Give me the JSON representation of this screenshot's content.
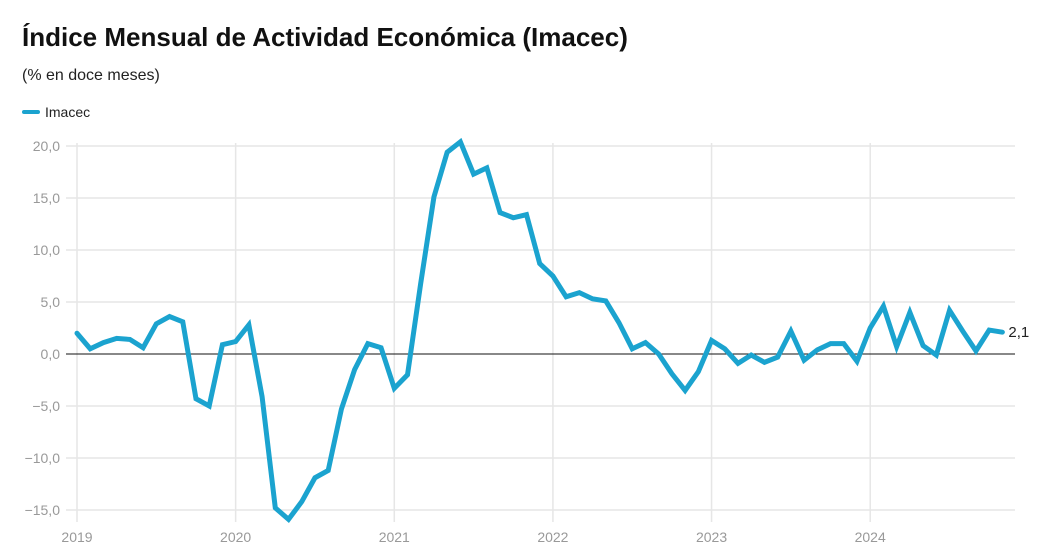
{
  "chart_data": {
    "type": "line",
    "title": "Índice Mensual de Actividad Económica (Imacec)",
    "subtitle": "(% en doce meses)",
    "ylim": [
      -15,
      20
    ],
    "yticks": [
      20,
      15,
      10,
      5,
      0,
      -5,
      -10,
      -15
    ],
    "ytick_labels": [
      "20,0",
      "15,0",
      "10,0",
      "5,0",
      "0,0",
      "−5,0",
      "−10,0",
      "−15,0"
    ],
    "xtick_labels": [
      "2019",
      "2020",
      "2021",
      "2022",
      "2023",
      "2024"
    ],
    "grid": true,
    "legend_position": "top-left",
    "end_label": "2,1",
    "series": [
      {
        "name": "Imacec",
        "color": "#1ba3cf",
        "start": "2019-01",
        "frequency": "monthly",
        "values": [
          2.0,
          0.5,
          1.1,
          1.5,
          1.4,
          0.6,
          2.9,
          3.6,
          3.1,
          -4.3,
          -5.0,
          0.9,
          1.2,
          2.8,
          -4.1,
          -14.8,
          -15.9,
          -14.2,
          -11.9,
          -11.2,
          -5.3,
          -1.5,
          1.0,
          0.6,
          -3.3,
          -2.0,
          6.8,
          15.1,
          19.4,
          20.4,
          17.3,
          17.9,
          13.6,
          13.1,
          13.4,
          8.7,
          7.5,
          5.5,
          5.9,
          5.3,
          5.1,
          3.0,
          0.5,
          1.1,
          0.0,
          -1.9,
          -3.5,
          -1.7,
          1.3,
          0.5,
          -0.9,
          -0.1,
          -0.8,
          -0.3,
          2.2,
          -0.6,
          0.4,
          1.0,
          1.0,
          -0.7,
          2.5,
          4.6,
          0.7,
          4.0,
          0.8,
          -0.1,
          4.2,
          2.2,
          0.3,
          2.3,
          2.1
        ]
      }
    ]
  }
}
